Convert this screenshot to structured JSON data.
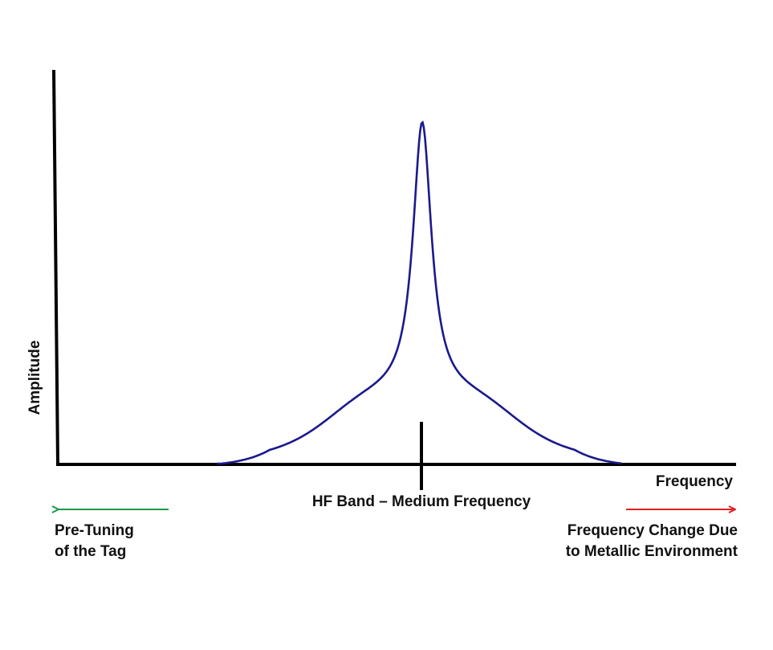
{
  "diagram": {
    "axis_labels": {
      "y": "Amplitude",
      "x": "Frequency"
    },
    "center_marker_label": "HF Band – Medium Frequency",
    "left_note": {
      "lines": [
        "Pre-Tuning",
        "of the Tag"
      ]
    },
    "right_note": {
      "lines": [
        "Frequency Change Due",
        "to Metallic Environment"
      ]
    },
    "curve": {
      "shape": "resonance-peak",
      "color": "#1a1a8c"
    },
    "colors": {
      "axes": "#000000",
      "left_arrow": "#1a9a4a",
      "right_arrow": "#e02020"
    },
    "icons": {
      "left": "arrow-left-icon",
      "right": "arrow-right-icon"
    }
  }
}
